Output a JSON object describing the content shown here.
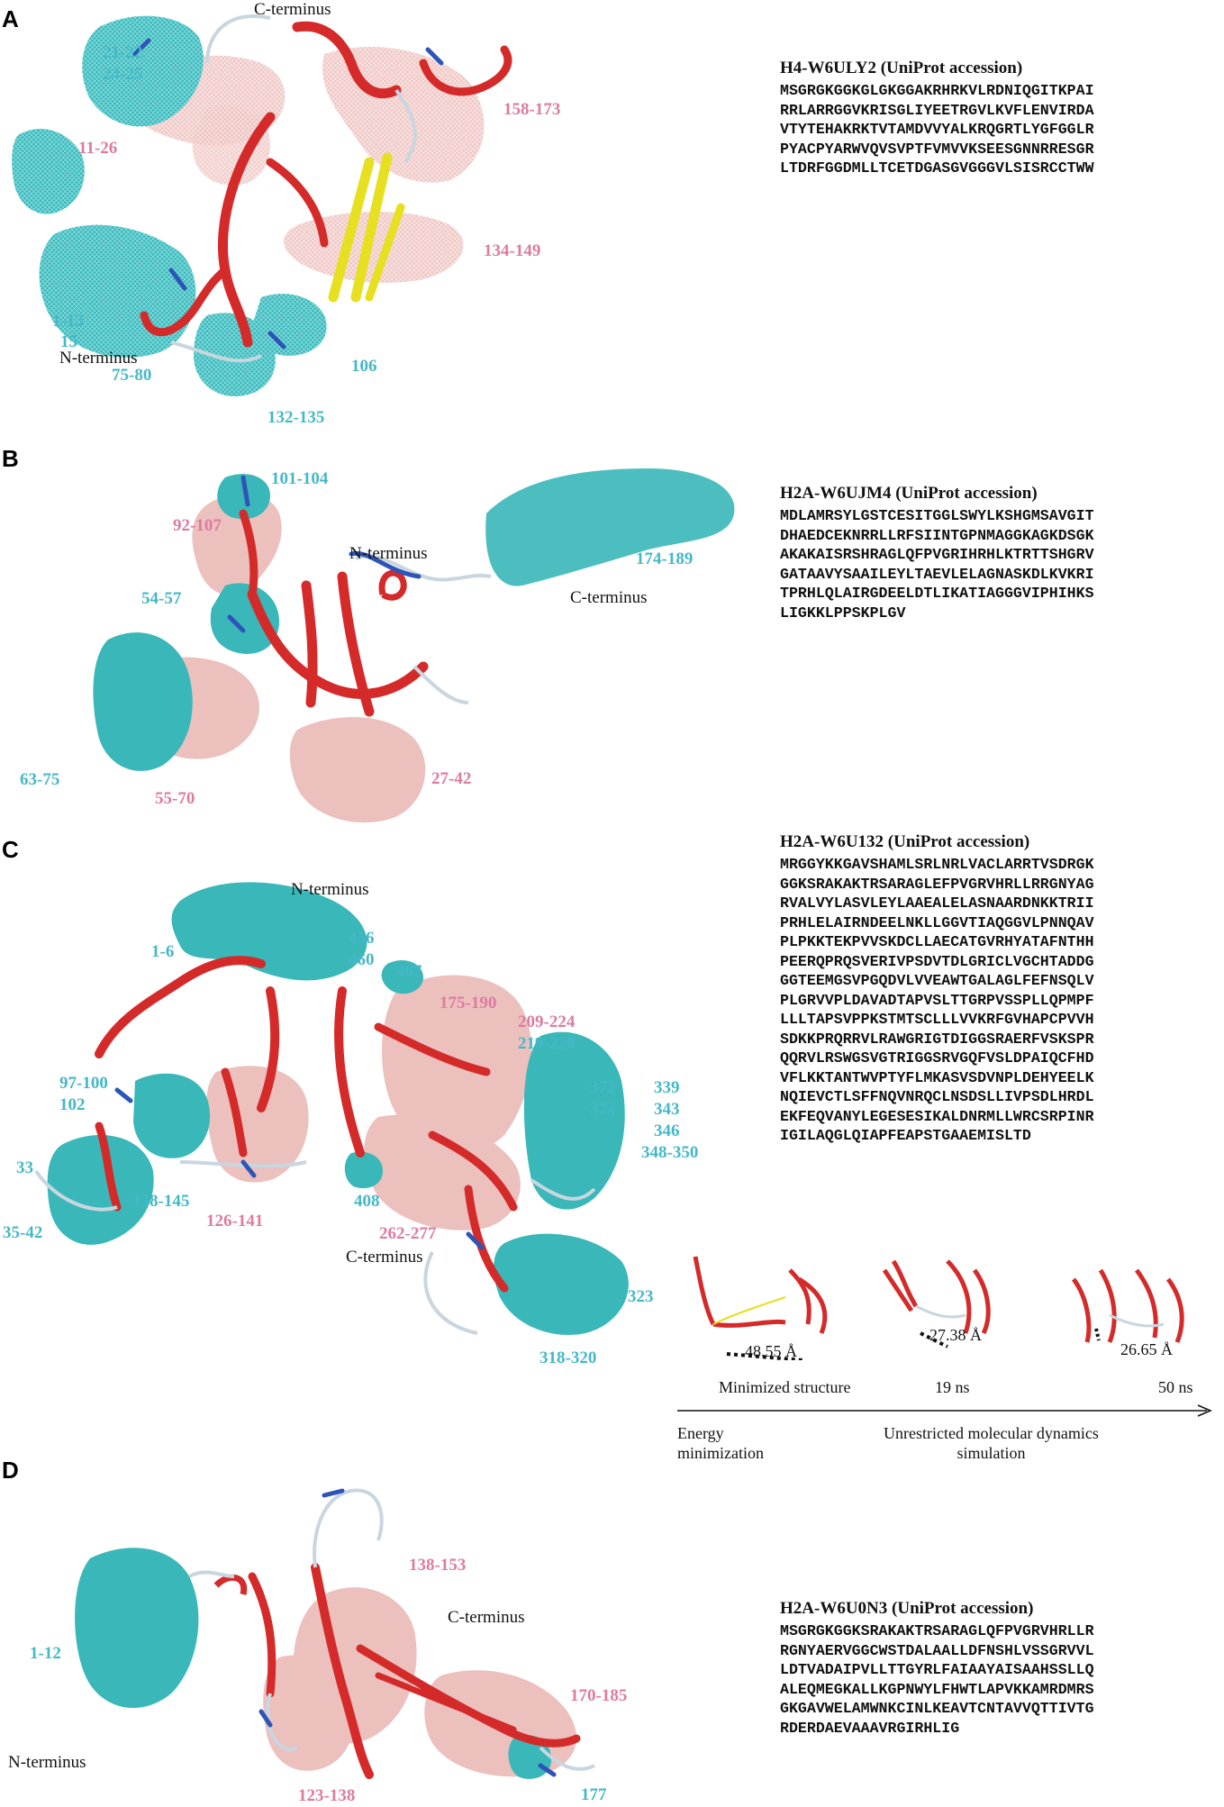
{
  "panels": {
    "A": {
      "letter": "A",
      "labels": {
        "c_terminus": "C-terminus",
        "n_terminus": "N-terminus",
        "r21_22": "21-22",
        "r24_25": "24-25",
        "r11_26": "11-26",
        "r158_173": "158-173",
        "r134_149": "134-149",
        "r1_13": "1-13",
        "r15": "15",
        "r75_80": "75-80",
        "r106": "106",
        "r132_135": "132-135"
      },
      "sequence": {
        "title": "H4-W6ULY2 (UniProt accession)",
        "lines": [
          "MSGRGKGGKGLGKGGAKRHRKVLRDNIQGITKPAI",
          "RRLARRGGVKRISGLIYEETRGVLKVFLENVIRDA",
          "VTYTEHAKRKTVTAMDVVYALKRQGRTLYGFGGLR",
          "PYACPYARWVQVSVPTFVMVVKSEESGNNRRESGR",
          "LTDRFGGDMLLTCETDGASGVGGGVLSISRCCTWW"
        ]
      }
    },
    "B": {
      "letter": "B",
      "labels": {
        "n_terminus": "N-terminus",
        "c_terminus": "C-terminus",
        "r101_104": "101-104",
        "r92_107": "92-107",
        "r174_189": "174-189",
        "r54_57": "54-57",
        "r63_75": "63-75",
        "r55_70": "55-70",
        "r27_42": "27-42"
      },
      "sequence": {
        "title": "H2A-W6UJM4 (UniProt accession)",
        "lines": [
          "MDLAMRSYLGSTCESITGGLSWYLKSHGMSAVGIT",
          "DHAEDCEKNRRLLRFSIINTGPNMAGGKAGKDSGK",
          "AKAKAISRSHRAGLQFPVGRIHRHLKTRTTSHGRV",
          "GATAAVYSAAILEYLTAEVLELAGNASKDLKVKRI",
          "TPRHLQLAIRGDEELDTLIKATIAGGGVIPHIHKS",
          "LIGKKLPPSKPLGV"
        ]
      }
    },
    "C": {
      "letter": "C",
      "labels": {
        "n_terminus": "N-terminus",
        "c_terminus": "C-terminus",
        "r1_6": "1-6",
        "r456": "456",
        "r460": "460",
        "r467": "467",
        "r175_190": "175-190",
        "r209_224": "209-224",
        "r219_220": "219-220",
        "r97_100": "97-100",
        "r102": "102",
        "r372": "372",
        "r374": "374",
        "r339": "339",
        "r343": "343",
        "r346": "346",
        "r348_350": "348-350",
        "r33": "33",
        "r35_42": "35-42",
        "r138_145": "138-145",
        "r126_141": "126-141",
        "r408": "408",
        "r262_277": "262-277",
        "r323": "323",
        "r318_320": "318-320"
      },
      "sequence": {
        "title": "H2A-W6U132 (UniProt accession)",
        "lines": [
          "MRGGYKKGAVSHAMLSRLNRLVACLARRTVSDRGK",
          "GGKSRAKAKTRSARAGLEFPVGRVHRLLRRGNYAG",
          "RVALVYLASVLEYLAAEALELASNAARDNKKTRII",
          "PRHLELAIRNDEELNKLLGGVTIAQGGVLPNNQAV",
          "PLPKKTEKPVVSKDCLLAECATGVRHYATAFNTHH",
          "PEERQPRQSVERIVPSDVTDLGRICLVGCHTADDG",
          "GGTEEMGSVPGQDVLVVEAWTGALAGLFEFNSQLV",
          "PLGRVVPLDAVADTAPVSLTTGRPVSSPLLQPMPF",
          "LLLTAPSVPPKSTMTSCLLLVVKRFGVHAPCPVVH",
          "SDKKPRQRRVLRAWGRIGTDIGGSRAERFVSKSPR",
          "QQRVLRSWGSVGTRIGGSRVGQFVSLDPAIQCFHD",
          "VFLKKTANTWVPTYFLMKASVSDVNPLDEHYEELK",
          "NQIEVCTLSFFNQVNRQCLNSDSLLIVPSDLHRDL",
          "EKFEQVANYLEGESESIKALDNRMLLWRCSRPINR",
          "IGILAQGLQIAPFEAPSTGAAEMISLTD"
        ]
      },
      "timeline": {
        "distances": [
          "48.55 Å",
          "27.38 Å",
          "26.65 Å"
        ],
        "stage_labels": [
          "Minimized structure",
          "19 ns",
          "50 ns"
        ],
        "phase_left": "Energy\nminimization",
        "phase_right": "Unrestricted molecular dynamics\nsimulation"
      }
    },
    "D": {
      "letter": "D",
      "labels": {
        "r1_12": "1-12",
        "r138_153": "138-153",
        "c_terminus": "C-terminus",
        "r170_185": "170-185",
        "n_terminus": "N-terminus",
        "r123_138": "123-138",
        "r177": "177"
      },
      "sequence": {
        "title": "H2A-W6U0N3 (UniProt accession)",
        "lines": [
          "MSGRGKGGKSRAKAKTRSARAGLQFPVGRVHRLLR",
          "RGNYAERVGGCWSTDALAALLDFNSHLVSSGRVVL",
          "LDTVADAIPVLLTTGYRLFAIAAYAISAAHSSLLQ",
          "ALEQMEGKALLKGPNWYLFHWTLAPVKKAMRDMRS",
          "GKGAVWELAMWNKCINLKEAVTCNTAVVQTTIVTG",
          "RDERDAEVAAAVRGIRHLIG"
        ]
      }
    }
  },
  "colors": {
    "helix": "#d42a2a",
    "strand": "#e6e020",
    "coil": "#c9d6df",
    "turn": "#2d55b8",
    "cyan_surface": "#3ab7b9",
    "pink_surface": "#ebc0bd",
    "cyan_label": "#45b8c8",
    "pink_label": "#dd7ba0"
  }
}
